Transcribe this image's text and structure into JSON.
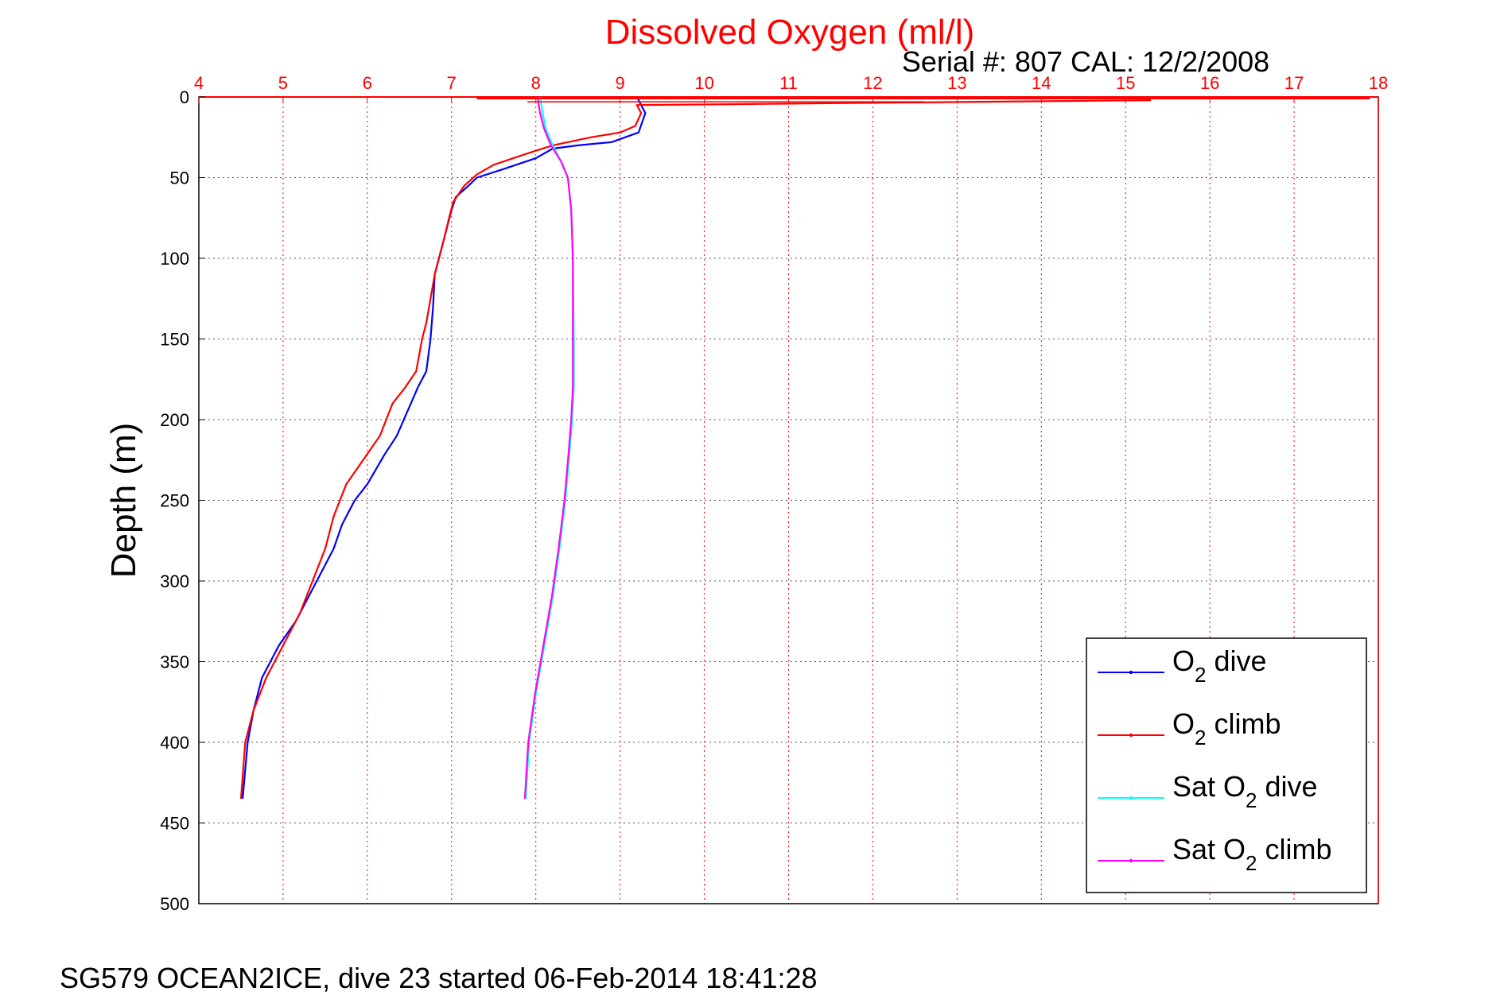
{
  "chart_data": {
    "type": "line",
    "title": "Dissolved Oxygen (ml/l)",
    "subtitle": "Serial #: 807  CAL: 12/2/2008",
    "xlabel": "",
    "ylabel": "Depth (m)",
    "xlim": [
      4,
      18
    ],
    "ylim": [
      0,
      500
    ],
    "y_reversed": true,
    "x_axis_position": "top",
    "grid": true,
    "xticks": [
      4,
      5,
      6,
      7,
      8,
      9,
      10,
      11,
      12,
      13,
      14,
      15,
      16,
      17,
      18
    ],
    "yticks": [
      0,
      50,
      100,
      150,
      200,
      250,
      300,
      350,
      400,
      450,
      500
    ],
    "legend_position": "bottom-right",
    "series": [
      {
        "key": "o2_dive",
        "name_main": "O",
        "name_sub": "2",
        "name_rest": " dive",
        "color": "#0000ff",
        "x": [
          9.2,
          9.25,
          9.3,
          9.22,
          8.9,
          8.5,
          8.2,
          8.0,
          7.6,
          7.3,
          7.2,
          7.05,
          7.0,
          6.95,
          6.9,
          6.85,
          6.8,
          6.78,
          6.75,
          6.7,
          6.6,
          6.5,
          6.35,
          6.2,
          6.0,
          5.85,
          5.7,
          5.6,
          5.45,
          5.3,
          5.15,
          4.95,
          4.75,
          4.65,
          4.58,
          4.52
        ],
        "y": [
          0,
          5,
          10,
          22,
          28,
          30,
          32,
          38,
          45,
          50,
          55,
          62,
          70,
          80,
          90,
          100,
          110,
          130,
          150,
          170,
          180,
          192,
          210,
          222,
          240,
          250,
          265,
          280,
          295,
          310,
          325,
          340,
          360,
          380,
          400,
          435
        ]
      },
      {
        "key": "o2_climb",
        "name_main": "O",
        "name_sub": "2",
        "name_rest": " climb",
        "color": "#ff0000",
        "x": [
          15.3,
          9.2,
          9.25,
          9.18,
          9.0,
          8.65,
          8.2,
          7.9,
          7.5,
          7.3,
          7.15,
          7.02,
          6.97,
          6.9,
          6.85,
          6.8,
          6.75,
          6.7,
          6.65,
          6.58,
          6.45,
          6.3,
          6.15,
          5.95,
          5.75,
          5.6,
          5.5,
          5.35,
          5.2,
          5.0,
          4.8,
          4.65,
          4.55,
          4.5
        ],
        "y": [
          2,
          5,
          10,
          18,
          22,
          25,
          30,
          35,
          42,
          48,
          55,
          65,
          75,
          90,
          100,
          110,
          125,
          140,
          150,
          170,
          180,
          190,
          210,
          225,
          240,
          260,
          280,
          300,
          320,
          340,
          360,
          380,
          400,
          435
        ]
      },
      {
        "key": "sat_o2_dive",
        "name_main": "Sat O",
        "name_sub": "2",
        "name_rest": " dive",
        "color": "#00ffff",
        "x": [
          8.05,
          8.08,
          8.12,
          8.2,
          8.3,
          8.38,
          8.42,
          8.44,
          8.45,
          8.45,
          8.43,
          8.4,
          8.35,
          8.28,
          8.2,
          8.1,
          8.0,
          7.92,
          7.88
        ],
        "y": [
          0,
          10,
          20,
          30,
          40,
          50,
          70,
          100,
          150,
          180,
          200,
          220,
          250,
          280,
          310,
          340,
          370,
          400,
          435
        ]
      },
      {
        "key": "sat_o2_climb",
        "name_main": "Sat O",
        "name_sub": "2",
        "name_rest": " climb",
        "color": "#ff00ff",
        "x": [
          8.02,
          8.05,
          8.1,
          8.18,
          8.3,
          8.38,
          8.42,
          8.44,
          8.44,
          8.44,
          8.42,
          8.39,
          8.34,
          8.27,
          8.19,
          8.09,
          7.99,
          7.91,
          7.87
        ],
        "y": [
          0,
          10,
          20,
          30,
          40,
          50,
          70,
          100,
          150,
          180,
          200,
          220,
          250,
          280,
          310,
          340,
          370,
          400,
          435
        ]
      }
    ]
  },
  "footer": "SG579 OCEAN2ICE, dive 23 started 06-Feb-2014 18:41:28"
}
